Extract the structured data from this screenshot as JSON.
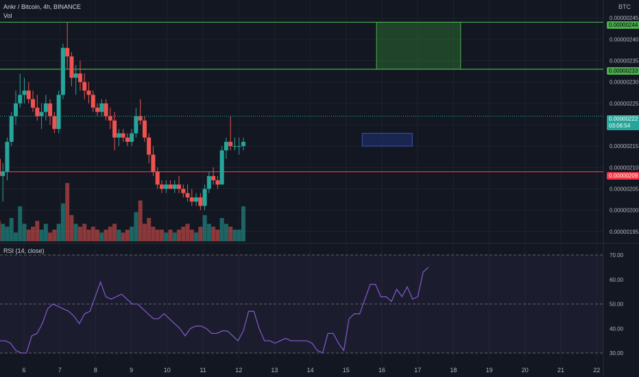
{
  "header": {
    "title": "Ankr / Bitcoin, 4h, BINANCE",
    "volume_label": "Vol",
    "currency": "BTC"
  },
  "rsi_panel": {
    "label": "RSI (14, close)"
  },
  "price_tags": {
    "upper_resistance": "0.00000244",
    "lower_resistance": "0.00000233",
    "current_price": "0.00000222",
    "countdown": "03:06:54",
    "support": "0.00000209"
  },
  "colors": {
    "background": "#131722",
    "bull": "#26a69a",
    "bear": "#ef5350",
    "resistance_line": "#4caf50",
    "support_line": "#f23645",
    "rsi_line": "#7e57c2",
    "demand_zone": "#1e3a8a",
    "target_zone": "#2e7d32"
  },
  "chart_data": {
    "type": "candlestick",
    "price_axis": {
      "ticks": [
        "0.00000245",
        "0.00000240",
        "0.00000235",
        "0.00000230",
        "0.00000225",
        "0.00000220",
        "0.00000215",
        "0.00000210",
        "0.00000205",
        "0.00000200",
        "0.00000195"
      ],
      "range": [
        1.94e-06,
        2.46e-06
      ]
    },
    "time_axis": {
      "ticks": [
        "6",
        "7",
        "8",
        "9",
        "10",
        "11",
        "12",
        "13",
        "14",
        "15",
        "16",
        "17",
        "18",
        "19",
        "20",
        "21",
        "22"
      ]
    },
    "horizontal_lines": [
      {
        "name": "upper_resistance",
        "value": 2.44e-06
      },
      {
        "name": "lower_resistance",
        "value": 2.33e-06
      },
      {
        "name": "support",
        "value": 2.09e-06
      }
    ],
    "zones": [
      {
        "name": "target",
        "from_day": 15.85,
        "to_day": 18.2,
        "low": 2.33e-06,
        "high": 2.44e-06
      },
      {
        "name": "demand",
        "from_day": 15.45,
        "to_day": 16.85,
        "low": 2.15e-06,
        "high": 2.18e-06
      }
    ],
    "ohlc": [
      {
        "day": 5.05,
        "o": 2.18,
        "h": 2.21,
        "l": 2.14,
        "c": 2.17
      },
      {
        "day": 5.17,
        "o": 2.17,
        "h": 2.19,
        "l": 2.1,
        "c": 2.12
      },
      {
        "day": 5.29,
        "o": 2.12,
        "h": 2.13,
        "l": 2.04,
        "c": 2.08
      },
      {
        "day": 5.41,
        "o": 2.08,
        "h": 2.11,
        "l": 2.02,
        "c": 2.09
      },
      {
        "day": 5.53,
        "o": 2.09,
        "h": 2.17,
        "l": 2.07,
        "c": 2.16
      },
      {
        "day": 5.65,
        "o": 2.16,
        "h": 2.23,
        "l": 2.15,
        "c": 2.22
      },
      {
        "day": 5.77,
        "o": 2.22,
        "h": 2.28,
        "l": 2.2,
        "c": 2.25
      },
      {
        "day": 5.89,
        "o": 2.25,
        "h": 2.32,
        "l": 2.24,
        "c": 2.27
      },
      {
        "day": 6.01,
        "o": 2.27,
        "h": 2.31,
        "l": 2.25,
        "c": 2.28
      },
      {
        "day": 6.13,
        "o": 2.28,
        "h": 2.3,
        "l": 2.25,
        "c": 2.26
      },
      {
        "day": 6.25,
        "o": 2.26,
        "h": 2.28,
        "l": 2.23,
        "c": 2.24
      },
      {
        "day": 6.37,
        "o": 2.24,
        "h": 2.27,
        "l": 2.21,
        "c": 2.22
      },
      {
        "day": 6.49,
        "o": 2.22,
        "h": 2.25,
        "l": 2.19,
        "c": 2.23
      },
      {
        "day": 6.61,
        "o": 2.23,
        "h": 2.27,
        "l": 2.21,
        "c": 2.25
      },
      {
        "day": 6.73,
        "o": 2.25,
        "h": 2.26,
        "l": 2.2,
        "c": 2.22
      },
      {
        "day": 6.85,
        "o": 2.22,
        "h": 2.23,
        "l": 2.18,
        "c": 2.19
      },
      {
        "day": 6.97,
        "o": 2.19,
        "h": 2.28,
        "l": 2.18,
        "c": 2.27
      },
      {
        "day": 7.09,
        "o": 2.27,
        "h": 2.39,
        "l": 2.26,
        "c": 2.38
      },
      {
        "day": 7.21,
        "o": 2.38,
        "h": 2.44,
        "l": 2.33,
        "c": 2.36
      },
      {
        "day": 7.33,
        "o": 2.36,
        "h": 2.37,
        "l": 2.29,
        "c": 2.31
      },
      {
        "day": 7.45,
        "o": 2.31,
        "h": 2.34,
        "l": 2.27,
        "c": 2.32
      },
      {
        "day": 7.57,
        "o": 2.32,
        "h": 2.35,
        "l": 2.28,
        "c": 2.3
      },
      {
        "day": 7.69,
        "o": 2.3,
        "h": 2.32,
        "l": 2.26,
        "c": 2.28
      },
      {
        "day": 7.81,
        "o": 2.28,
        "h": 2.3,
        "l": 2.25,
        "c": 2.27
      },
      {
        "day": 7.93,
        "o": 2.27,
        "h": 2.28,
        "l": 2.23,
        "c": 2.24
      },
      {
        "day": 8.05,
        "o": 2.24,
        "h": 2.25,
        "l": 2.22,
        "c": 2.23
      },
      {
        "day": 8.17,
        "o": 2.23,
        "h": 2.26,
        "l": 2.22,
        "c": 2.25
      },
      {
        "day": 8.29,
        "o": 2.25,
        "h": 2.26,
        "l": 2.21,
        "c": 2.22
      },
      {
        "day": 8.41,
        "o": 2.22,
        "h": 2.24,
        "l": 2.19,
        "c": 2.21
      },
      {
        "day": 8.53,
        "o": 2.21,
        "h": 2.23,
        "l": 2.14,
        "c": 2.17
      },
      {
        "day": 8.65,
        "o": 2.17,
        "h": 2.19,
        "l": 2.15,
        "c": 2.18
      },
      {
        "day": 8.77,
        "o": 2.18,
        "h": 2.19,
        "l": 2.16,
        "c": 2.17
      },
      {
        "day": 8.89,
        "o": 2.17,
        "h": 2.18,
        "l": 2.15,
        "c": 2.16
      },
      {
        "day": 9.01,
        "o": 2.16,
        "h": 2.19,
        "l": 2.15,
        "c": 2.18
      },
      {
        "day": 9.13,
        "o": 2.18,
        "h": 2.24,
        "l": 2.17,
        "c": 2.22
      },
      {
        "day": 9.25,
        "o": 2.22,
        "h": 2.26,
        "l": 2.2,
        "c": 2.21
      },
      {
        "day": 9.37,
        "o": 2.21,
        "h": 2.22,
        "l": 2.16,
        "c": 2.17
      },
      {
        "day": 9.49,
        "o": 2.17,
        "h": 2.18,
        "l": 2.11,
        "c": 2.13
      },
      {
        "day": 9.61,
        "o": 2.13,
        "h": 2.15,
        "l": 2.08,
        "c": 2.09
      },
      {
        "day": 9.73,
        "o": 2.09,
        "h": 2.1,
        "l": 2.05,
        "c": 2.06
      },
      {
        "day": 9.85,
        "o": 2.06,
        "h": 2.07,
        "l": 2.04,
        "c": 2.05
      },
      {
        "day": 9.97,
        "o": 2.05,
        "h": 2.07,
        "l": 2.04,
        "c": 2.06
      },
      {
        "day": 10.09,
        "o": 2.06,
        "h": 2.07,
        "l": 2.05,
        "c": 2.05
      },
      {
        "day": 10.21,
        "o": 2.05,
        "h": 2.07,
        "l": 2.04,
        "c": 2.06
      },
      {
        "day": 10.33,
        "o": 2.06,
        "h": 2.08,
        "l": 2.04,
        "c": 2.05
      },
      {
        "day": 10.45,
        "o": 2.05,
        "h": 2.06,
        "l": 2.03,
        "c": 2.04
      },
      {
        "day": 10.57,
        "o": 2.04,
        "h": 2.06,
        "l": 2.02,
        "c": 2.03
      },
      {
        "day": 10.69,
        "o": 2.03,
        "h": 2.05,
        "l": 2.01,
        "c": 2.02
      },
      {
        "day": 10.81,
        "o": 2.02,
        "h": 2.04,
        "l": 2.01,
        "c": 2.03
      },
      {
        "day": 10.93,
        "o": 2.03,
        "h": 2.04,
        "l": 2.0,
        "c": 2.01
      },
      {
        "day": 11.05,
        "o": 2.01,
        "h": 2.06,
        "l": 2.0,
        "c": 2.05
      },
      {
        "day": 11.17,
        "o": 2.05,
        "h": 2.09,
        "l": 2.04,
        "c": 2.08
      },
      {
        "day": 11.29,
        "o": 2.08,
        "h": 2.1,
        "l": 2.06,
        "c": 2.07
      },
      {
        "day": 11.41,
        "o": 2.07,
        "h": 2.08,
        "l": 2.05,
        "c": 2.06
      },
      {
        "day": 11.53,
        "o": 2.06,
        "h": 2.15,
        "l": 2.06,
        "c": 2.14
      },
      {
        "day": 11.65,
        "o": 2.14,
        "h": 2.17,
        "l": 2.12,
        "c": 2.16
      },
      {
        "day": 11.77,
        "o": 2.16,
        "h": 2.22,
        "l": 2.14,
        "c": 2.15
      },
      {
        "day": 11.89,
        "o": 2.15,
        "h": 2.17,
        "l": 2.14,
        "c": 2.15
      },
      {
        "day": 12.01,
        "o": 2.15,
        "h": 2.17,
        "l": 2.13,
        "c": 2.15
      },
      {
        "day": 12.13,
        "o": 2.15,
        "h": 2.17,
        "l": 2.14,
        "c": 2.16
      }
    ],
    "volume": [
      0.15,
      0.2,
      0.35,
      0.3,
      0.25,
      0.4,
      0.15,
      0.6,
      0.3,
      0.2,
      0.25,
      0.35,
      0.2,
      0.3,
      0.15,
      0.2,
      0.3,
      0.65,
      1.0,
      0.45,
      0.3,
      0.25,
      0.3,
      0.2,
      0.25,
      0.2,
      0.15,
      0.2,
      0.25,
      0.3,
      0.2,
      0.15,
      0.2,
      0.25,
      0.5,
      0.7,
      0.3,
      0.4,
      0.25,
      0.2,
      0.2,
      0.15,
      0.2,
      0.15,
      0.2,
      0.25,
      0.3,
      0.2,
      0.15,
      0.25,
      0.45,
      0.3,
      0.25,
      0.2,
      0.4,
      0.3,
      0.25,
      0.2,
      0.2,
      0.6
    ],
    "rsi": {
      "range": [
        25,
        75
      ],
      "levels": [
        {
          "label": "70.00",
          "value": 70
        },
        {
          "label": "60.00",
          "value": 60
        },
        {
          "label": "50.00",
          "value": 50
        },
        {
          "label": "40.00",
          "value": 40
        },
        {
          "label": "30.00",
          "value": 30
        }
      ],
      "band": [
        30,
        70
      ],
      "values": [
        35,
        35,
        34,
        31,
        30,
        30,
        37,
        38,
        42,
        48,
        50,
        49,
        48,
        47,
        45,
        42,
        46,
        47,
        53,
        59,
        53,
        52,
        53,
        54,
        52,
        50,
        50,
        48,
        46,
        44,
        44,
        46,
        44,
        42,
        40,
        37,
        40,
        41,
        41,
        40,
        38,
        38,
        39,
        39,
        37,
        35,
        39,
        47,
        47,
        40,
        35,
        35,
        34,
        35,
        36,
        35,
        35,
        35,
        35,
        34,
        31,
        30,
        38,
        38,
        34,
        31,
        44,
        46,
        46,
        52,
        58,
        58,
        53,
        53,
        51,
        56,
        53,
        57,
        52,
        53,
        63,
        65
      ]
    }
  }
}
